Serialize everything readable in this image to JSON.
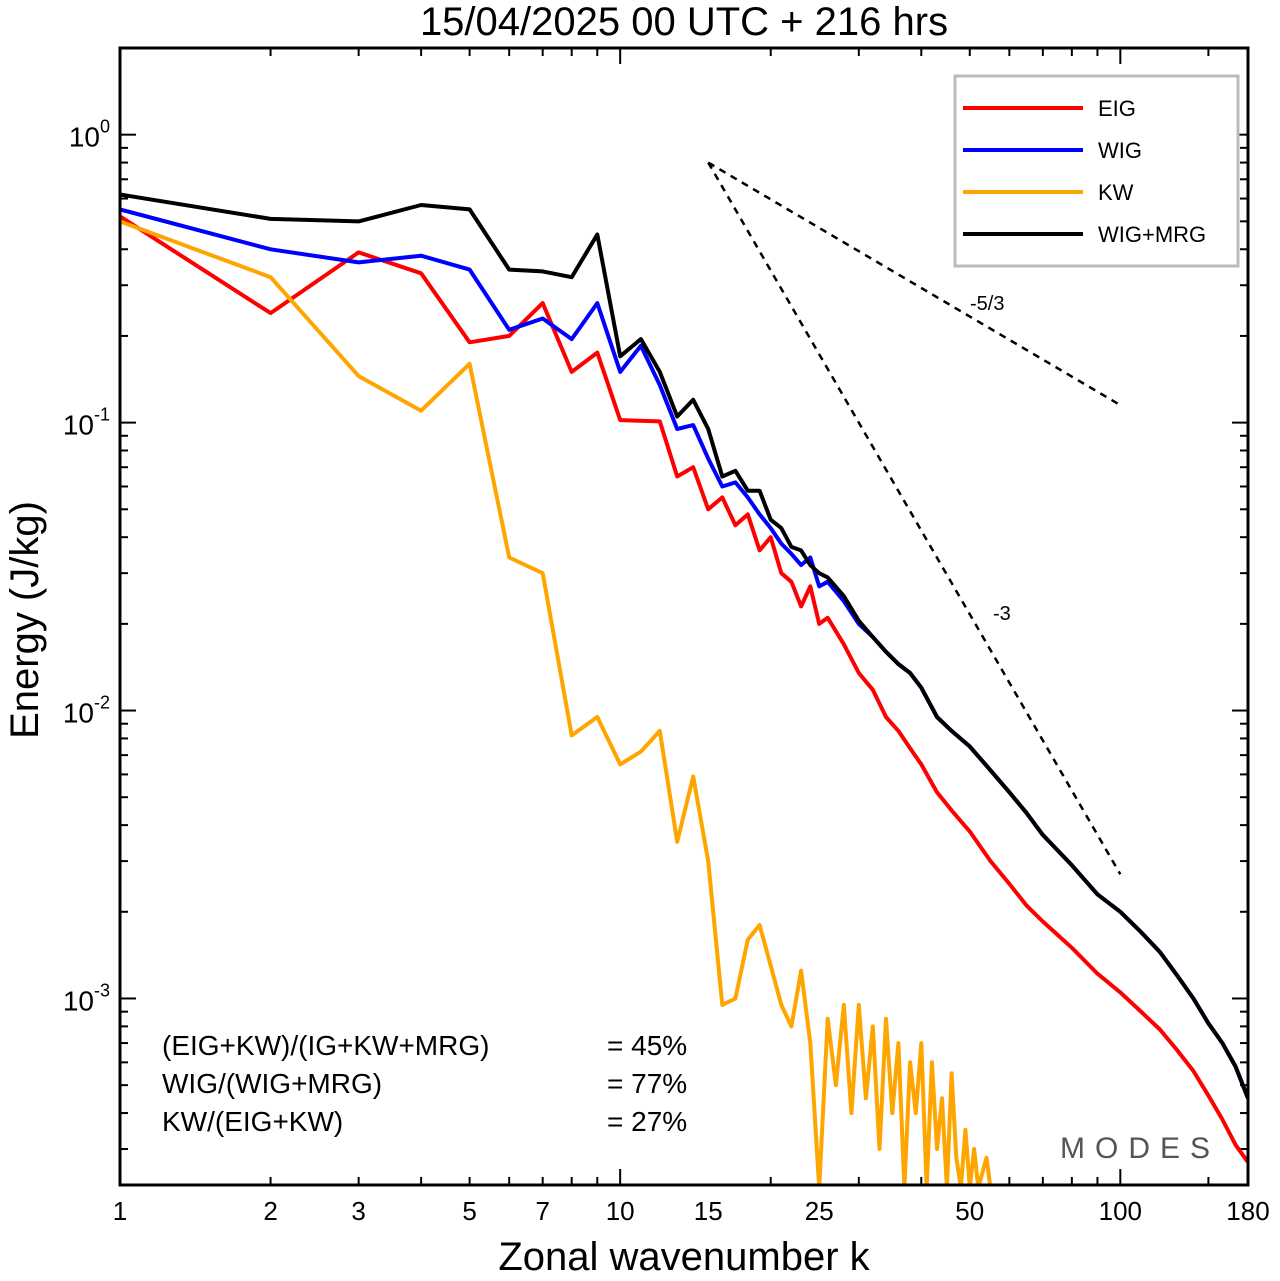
{
  "chart_data": {
    "type": "line",
    "title": "15/04/2025  00 UTC  + 216 hrs",
    "xlabel": "Zonal wavenumber k",
    "ylabel": "Energy (J/kg)",
    "xscale": "log",
    "yscale": "log",
    "xlim": [
      1,
      180
    ],
    "ylim": [
      0.000225,
      2.0
    ],
    "x_ticks": [
      1,
      2,
      3,
      5,
      7,
      10,
      15,
      25,
      50,
      100,
      180
    ],
    "x_tick_labels": [
      "1",
      "2",
      "3",
      "5",
      "7",
      "10",
      "15",
      "25",
      "50",
      "100",
      "180"
    ],
    "y_ticks": [
      {
        "value": 1.0,
        "base": "10",
        "exp": "0"
      },
      {
        "value": 0.1,
        "base": "10",
        "exp": "-1"
      },
      {
        "value": 0.01,
        "base": "10",
        "exp": "-2"
      },
      {
        "value": 0.001,
        "base": "10",
        "exp": "-3"
      }
    ],
    "legend": {
      "placement": "top-right",
      "entries": [
        "EIG",
        "WIG",
        "KW",
        "WIG+MRG"
      ]
    },
    "series": [
      {
        "name": "EIG",
        "color": "#ff0000",
        "points": [
          [
            1,
            0.52
          ],
          [
            2,
            0.24
          ],
          [
            3,
            0.39
          ],
          [
            4,
            0.33
          ],
          [
            5,
            0.19
          ],
          [
            6,
            0.2
          ],
          [
            7,
            0.26
          ],
          [
            8,
            0.15
          ],
          [
            9,
            0.175
          ],
          [
            10,
            0.102
          ],
          [
            12,
            0.101
          ],
          [
            13,
            0.065
          ],
          [
            14,
            0.07
          ],
          [
            15,
            0.05
          ],
          [
            16,
            0.055
          ],
          [
            17,
            0.044
          ],
          [
            18,
            0.048
          ],
          [
            19,
            0.036
          ],
          [
            20,
            0.04
          ],
          [
            21,
            0.03
          ],
          [
            22,
            0.028
          ],
          [
            23,
            0.023
          ],
          [
            24,
            0.027
          ],
          [
            25,
            0.02
          ],
          [
            26,
            0.021
          ],
          [
            28,
            0.017
          ],
          [
            30,
            0.0135
          ],
          [
            32,
            0.0118
          ],
          [
            34,
            0.0095
          ],
          [
            36,
            0.0085
          ],
          [
            38,
            0.0074
          ],
          [
            40,
            0.0065
          ],
          [
            43,
            0.0052
          ],
          [
            46,
            0.0045
          ],
          [
            50,
            0.0038
          ],
          [
            55,
            0.003
          ],
          [
            60,
            0.0025
          ],
          [
            65,
            0.0021
          ],
          [
            70,
            0.00185
          ],
          [
            80,
            0.0015
          ],
          [
            90,
            0.00122
          ],
          [
            100,
            0.00105
          ],
          [
            110,
            0.0009
          ],
          [
            120,
            0.00078
          ],
          [
            130,
            0.00066
          ],
          [
            140,
            0.00056
          ],
          [
            150,
            0.00046
          ],
          [
            160,
            0.00038
          ],
          [
            170,
            0.00031
          ],
          [
            180,
            0.00027
          ]
        ]
      },
      {
        "name": "WIG",
        "color": "#0000ff",
        "points": [
          [
            1,
            0.55
          ],
          [
            2,
            0.4
          ],
          [
            3,
            0.36
          ],
          [
            4,
            0.38
          ],
          [
            5,
            0.34
          ],
          [
            6,
            0.21
          ],
          [
            7,
            0.23
          ],
          [
            8,
            0.195
          ],
          [
            9,
            0.26
          ],
          [
            10,
            0.15
          ],
          [
            11,
            0.185
          ],
          [
            12,
            0.135
          ],
          [
            13,
            0.095
          ],
          [
            14,
            0.098
          ],
          [
            15,
            0.075
          ],
          [
            16,
            0.06
          ],
          [
            17,
            0.062
          ],
          [
            18,
            0.055
          ],
          [
            19,
            0.048
          ],
          [
            20,
            0.043
          ],
          [
            21,
            0.038
          ],
          [
            22,
            0.035
          ],
          [
            23,
            0.032
          ],
          [
            24,
            0.034
          ],
          [
            25,
            0.027
          ],
          [
            26,
            0.028
          ],
          [
            28,
            0.024
          ],
          [
            30,
            0.02
          ],
          [
            32,
            0.018
          ],
          [
            34,
            0.016
          ],
          [
            36,
            0.0145
          ],
          [
            38,
            0.0135
          ],
          [
            40,
            0.012
          ],
          [
            43,
            0.0095
          ],
          [
            46,
            0.0085
          ],
          [
            50,
            0.0075
          ],
          [
            55,
            0.0062
          ],
          [
            60,
            0.0052
          ],
          [
            65,
            0.0044
          ],
          [
            70,
            0.0037
          ],
          [
            80,
            0.0029
          ],
          [
            90,
            0.0023
          ],
          [
            100,
            0.002
          ],
          [
            110,
            0.0017
          ],
          [
            120,
            0.00145
          ],
          [
            130,
            0.0012
          ],
          [
            140,
            0.001
          ],
          [
            150,
            0.00082
          ],
          [
            160,
            0.0007
          ],
          [
            170,
            0.00058
          ],
          [
            180,
            0.00045
          ]
        ]
      },
      {
        "name": "KW",
        "color": "#ffa500",
        "points": [
          [
            1,
            0.5
          ],
          [
            2,
            0.32
          ],
          [
            3,
            0.145
          ],
          [
            4,
            0.11
          ],
          [
            5,
            0.16
          ],
          [
            6,
            0.034
          ],
          [
            7,
            0.03
          ],
          [
            8,
            0.0082
          ],
          [
            9,
            0.0095
          ],
          [
            10,
            0.0065
          ],
          [
            11,
            0.0072
          ],
          [
            12,
            0.0085
          ],
          [
            13,
            0.0035
          ],
          [
            14,
            0.0059
          ],
          [
            15,
            0.003
          ],
          [
            16,
            0.00095
          ],
          [
            17,
            0.001
          ],
          [
            18,
            0.0016
          ],
          [
            19,
            0.0018
          ],
          [
            20,
            0.0013
          ],
          [
            21,
            0.00095
          ],
          [
            22,
            0.0008
          ],
          [
            23,
            0.00125
          ],
          [
            24,
            0.0007
          ],
          [
            25,
            0.00022
          ],
          [
            26,
            0.00085
          ],
          [
            27,
            0.0005
          ],
          [
            28,
            0.00095
          ],
          [
            29,
            0.0004
          ],
          [
            30,
            0.00095
          ],
          [
            31,
            0.00045
          ],
          [
            32,
            0.0008
          ],
          [
            33,
            0.0003
          ],
          [
            34,
            0.00085
          ],
          [
            35,
            0.0004
          ],
          [
            36,
            0.0007
          ],
          [
            37,
            0.00022
          ],
          [
            38,
            0.0006
          ],
          [
            39,
            0.0004
          ],
          [
            40,
            0.0007
          ],
          [
            41,
            0.00022
          ],
          [
            42,
            0.0006
          ],
          [
            43,
            0.0003
          ],
          [
            44,
            0.00045
          ],
          [
            45,
            0.00022
          ],
          [
            46,
            0.00055
          ],
          [
            47,
            0.00028
          ],
          [
            48,
            0.00022
          ],
          [
            49,
            0.00035
          ],
          [
            50,
            0.00022
          ],
          [
            51,
            0.0003
          ],
          [
            52,
            0.00022
          ],
          [
            54,
            0.00028
          ],
          [
            55,
            0.00022
          ]
        ]
      },
      {
        "name": "WIG+MRG",
        "color": "#000000",
        "points": [
          [
            1,
            0.62
          ],
          [
            2,
            0.51
          ],
          [
            3,
            0.5
          ],
          [
            4,
            0.57
          ],
          [
            5,
            0.55
          ],
          [
            6,
            0.34
          ],
          [
            7,
            0.335
          ],
          [
            8,
            0.32
          ],
          [
            9,
            0.45
          ],
          [
            10,
            0.17
          ],
          [
            11,
            0.195
          ],
          [
            12,
            0.15
          ],
          [
            13,
            0.105
          ],
          [
            14,
            0.12
          ],
          [
            15,
            0.095
          ],
          [
            16,
            0.065
          ],
          [
            17,
            0.068
          ],
          [
            18,
            0.058
          ],
          [
            19,
            0.058
          ],
          [
            20,
            0.046
          ],
          [
            21,
            0.043
          ],
          [
            22,
            0.037
          ],
          [
            23,
            0.036
          ],
          [
            24,
            0.032
          ],
          [
            25,
            0.03
          ],
          [
            26,
            0.029
          ],
          [
            28,
            0.025
          ],
          [
            30,
            0.0205
          ],
          [
            32,
            0.018
          ],
          [
            34,
            0.016
          ],
          [
            36,
            0.0145
          ],
          [
            38,
            0.0135
          ],
          [
            40,
            0.012
          ],
          [
            43,
            0.0095
          ],
          [
            46,
            0.0085
          ],
          [
            50,
            0.0075
          ],
          [
            55,
            0.0062
          ],
          [
            60,
            0.0052
          ],
          [
            65,
            0.0044
          ],
          [
            70,
            0.0037
          ],
          [
            80,
            0.0029
          ],
          [
            90,
            0.0023
          ],
          [
            100,
            0.002
          ],
          [
            110,
            0.0017
          ],
          [
            120,
            0.00145
          ],
          [
            130,
            0.0012
          ],
          [
            140,
            0.001
          ],
          [
            150,
            0.00082
          ],
          [
            160,
            0.0007
          ],
          [
            170,
            0.00058
          ],
          [
            180,
            0.00045
          ]
        ]
      }
    ],
    "reference_slopes": [
      {
        "label": "-5/3",
        "from": [
          15,
          0.8
        ],
        "to": [
          100,
          0.115
        ]
      },
      {
        "label": "-3",
        "from": [
          15,
          0.8
        ],
        "to": [
          100,
          0.0027
        ]
      }
    ],
    "annotations": [
      {
        "text": "(EIG+KW)/(IG+KW+MRG)",
        "value": "= 45%"
      },
      {
        "text": "WIG/(WIG+MRG)",
        "value": "= 77%"
      },
      {
        "text": "KW/(EIG+KW)",
        "value": "= 27%"
      }
    ],
    "watermark": "MODES"
  }
}
